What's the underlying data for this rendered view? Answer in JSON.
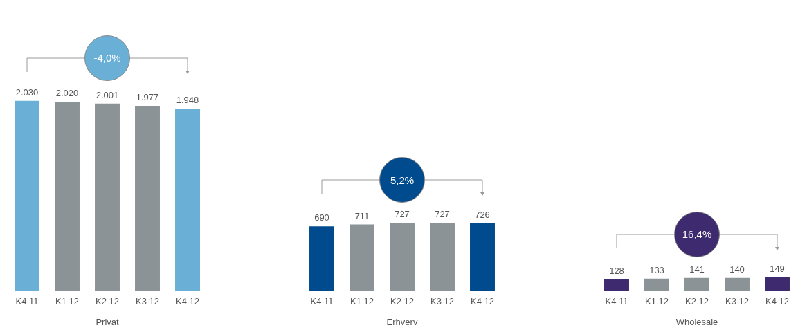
{
  "chart_data": [
    {
      "type": "bar",
      "xlabel": "Privat",
      "categories": [
        "K4 11",
        "K1 12",
        "K2 12",
        "K3 12",
        "K4 12"
      ],
      "values": [
        2030,
        2020,
        2001,
        1977,
        1948
      ],
      "value_labels": [
        "2.030",
        "2.020",
        "2.001",
        "1.977",
        "1.948"
      ],
      "colors": [
        "#6aafd6",
        "#8c9396",
        "#8c9396",
        "#8c9396",
        "#6aafd6"
      ],
      "annotations": [
        "-4,0%"
      ],
      "tick_labels": "x",
      "grid": false,
      "legend": false
    },
    {
      "type": "bar",
      "xlabel": "Erhverv",
      "categories": [
        "K4 11",
        "K1 12",
        "K2 12",
        "K3 12",
        "K4 12"
      ],
      "values": [
        690,
        711,
        727,
        727,
        726
      ],
      "value_labels": [
        "690",
        "711",
        "727",
        "727",
        "726"
      ],
      "colors": [
        "#004b8d",
        "#8c9396",
        "#8c9396",
        "#8c9396",
        "#004b8d"
      ],
      "annotations": [
        "5,2%"
      ],
      "tick_labels": "x",
      "grid": false,
      "legend": false
    },
    {
      "type": "bar",
      "xlabel": "Wholesale",
      "categories": [
        "K4 11",
        "K1 12",
        "K2 12",
        "K3 12",
        "K4 12"
      ],
      "values": [
        128,
        133,
        141,
        140,
        149
      ],
      "value_labels": [
        "128",
        "133",
        "141",
        "140",
        "149"
      ],
      "colors": [
        "#3e2a6e",
        "#8c9396",
        "#8c9396",
        "#8c9396",
        "#3e2a6e"
      ],
      "annotations": [
        "16,4%"
      ],
      "tick_labels": "x",
      "grid": false,
      "legend": false
    }
  ]
}
